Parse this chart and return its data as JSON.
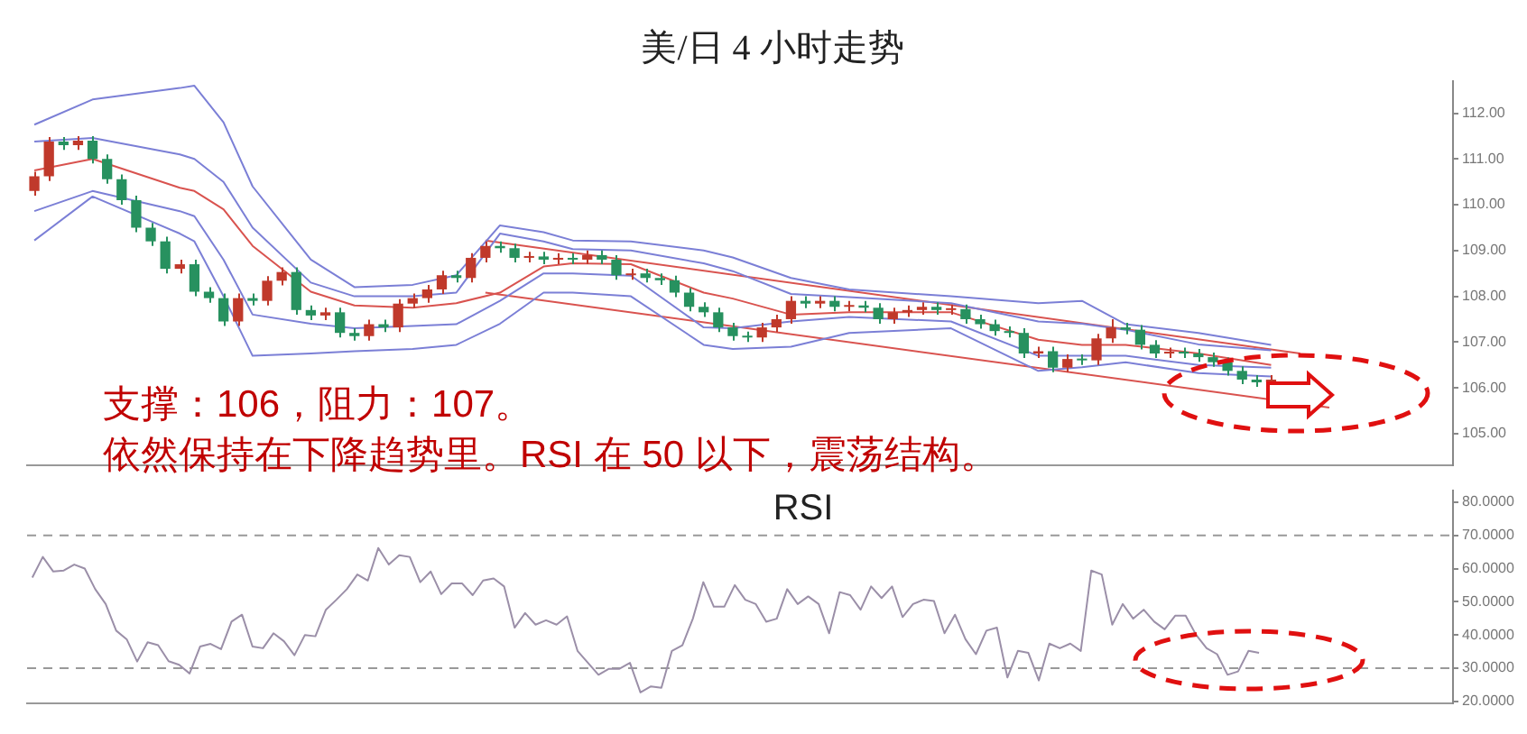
{
  "chart_data": [
    {
      "type": "candlestick",
      "title": "美/日 4 小时走势",
      "annotations": [
        "支撑：106，阻力：107。",
        "依然保持在下降趋势里。RSI 在 50 以下，震荡结构。"
      ],
      "categories": [
        null,
        null,
        null,
        null,
        null,
        null,
        null,
        null,
        null,
        null,
        null,
        null,
        null,
        null,
        null,
        null,
        null,
        null,
        null,
        null,
        null,
        null,
        null,
        null,
        null,
        null,
        null,
        null,
        null,
        null,
        null,
        null,
        null,
        null,
        null,
        null,
        null,
        null,
        null,
        null,
        null,
        null,
        null,
        null,
        null,
        null,
        null,
        null,
        null,
        null,
        null,
        null,
        null,
        null,
        null,
        null,
        null,
        null,
        null,
        null,
        null,
        null,
        null,
        null,
        null,
        null,
        null,
        null,
        null,
        null,
        null,
        null,
        null,
        null,
        null,
        null,
        null,
        null,
        null,
        null,
        null,
        null,
        null,
        null,
        null,
        null,
        null,
        null,
        null,
        null,
        null,
        null,
        null,
        null,
        null,
        null,
        null,
        null
      ],
      "ohlc": [
        [
          110.3,
          110.72,
          110.2,
          110.62
        ],
        [
          110.62,
          111.48,
          110.52,
          111.38
        ],
        [
          111.38,
          111.48,
          111.2,
          111.3
        ],
        [
          111.3,
          111.5,
          111.2,
          111.4
        ],
        [
          111.4,
          111.5,
          110.9,
          111.0
        ],
        [
          111.0,
          111.1,
          110.46,
          110.56
        ],
        [
          110.56,
          110.66,
          110.0,
          110.1
        ],
        [
          110.1,
          110.2,
          109.4,
          109.5
        ],
        [
          109.5,
          109.6,
          109.1,
          109.2
        ],
        [
          109.2,
          109.3,
          108.5,
          108.6
        ],
        [
          108.6,
          108.8,
          108.5,
          108.7
        ],
        [
          108.7,
          108.8,
          108.0,
          108.1
        ],
        [
          108.1,
          108.2,
          107.86,
          107.96
        ],
        [
          107.96,
          108.06,
          107.35,
          107.45
        ],
        [
          107.45,
          108.06,
          107.35,
          107.96
        ],
        [
          107.96,
          108.06,
          107.8,
          107.9
        ],
        [
          107.9,
          108.44,
          107.8,
          108.34
        ],
        [
          108.34,
          108.63,
          108.24,
          108.53
        ],
        [
          108.53,
          108.63,
          107.6,
          107.7
        ],
        [
          107.7,
          107.8,
          107.48,
          107.58
        ],
        [
          107.58,
          107.75,
          107.48,
          107.65
        ],
        [
          107.65,
          107.75,
          107.1,
          107.2
        ],
        [
          107.2,
          107.3,
          107.03,
          107.13
        ],
        [
          107.13,
          107.49,
          107.03,
          107.39
        ],
        [
          107.39,
          107.49,
          107.22,
          107.32
        ],
        [
          107.32,
          107.94,
          107.22,
          107.84
        ],
        [
          107.84,
          108.06,
          107.74,
          107.96
        ],
        [
          107.96,
          108.25,
          107.86,
          108.15
        ],
        [
          108.15,
          108.56,
          108.05,
          108.46
        ],
        [
          108.46,
          108.56,
          108.3,
          108.4
        ],
        [
          108.4,
          108.94,
          108.3,
          108.84
        ],
        [
          108.84,
          109.2,
          108.74,
          109.1
        ],
        [
          109.1,
          109.2,
          108.95,
          109.05
        ],
        [
          109.05,
          109.15,
          108.74,
          108.84
        ],
        [
          108.84,
          108.97,
          108.74,
          108.87
        ],
        [
          108.87,
          108.97,
          108.7,
          108.8
        ],
        [
          108.8,
          108.94,
          108.7,
          108.84
        ],
        [
          108.84,
          108.94,
          108.7,
          108.8
        ],
        [
          108.8,
          109.0,
          108.7,
          108.9
        ],
        [
          108.9,
          109.0,
          108.7,
          108.8
        ],
        [
          108.8,
          108.9,
          108.36,
          108.46
        ],
        [
          108.46,
          108.6,
          108.36,
          108.5
        ],
        [
          108.5,
          108.6,
          108.3,
          108.4
        ],
        [
          108.4,
          108.5,
          108.25,
          108.35
        ],
        [
          108.35,
          108.45,
          107.98,
          108.08
        ],
        [
          108.08,
          108.18,
          107.67,
          107.77
        ],
        [
          107.77,
          107.87,
          107.55,
          107.65
        ],
        [
          107.65,
          107.75,
          107.22,
          107.32
        ],
        [
          107.32,
          107.42,
          107.03,
          107.13
        ],
        [
          107.13,
          107.23,
          107.0,
          107.1
        ],
        [
          107.1,
          107.42,
          107.0,
          107.32
        ],
        [
          107.32,
          107.6,
          107.22,
          107.5
        ],
        [
          107.5,
          108.0,
          107.4,
          107.9
        ],
        [
          107.9,
          108.0,
          107.74,
          107.84
        ],
        [
          107.84,
          108.0,
          107.74,
          107.9
        ],
        [
          107.9,
          108.0,
          107.67,
          107.77
        ],
        [
          107.77,
          107.9,
          107.67,
          107.8
        ],
        [
          107.8,
          107.9,
          107.65,
          107.75
        ],
        [
          107.75,
          107.85,
          107.4,
          107.5
        ],
        [
          107.5,
          107.75,
          107.4,
          107.65
        ],
        [
          107.65,
          107.8,
          107.55,
          107.7
        ],
        [
          107.7,
          107.87,
          107.6,
          107.77
        ],
        [
          107.77,
          107.87,
          107.6,
          107.7
        ],
        [
          107.7,
          107.82,
          107.6,
          107.72
        ],
        [
          107.72,
          107.82,
          107.4,
          107.5
        ],
        [
          107.5,
          107.6,
          107.29,
          107.39
        ],
        [
          107.39,
          107.49,
          107.14,
          107.24
        ],
        [
          107.24,
          107.34,
          107.1,
          107.2
        ],
        [
          107.2,
          107.3,
          106.65,
          106.75
        ],
        [
          106.75,
          106.9,
          106.65,
          106.8
        ],
        [
          106.8,
          106.9,
          106.34,
          106.44
        ],
        [
          106.44,
          106.73,
          106.34,
          106.63
        ],
        [
          106.63,
          106.73,
          106.5,
          106.6
        ],
        [
          106.6,
          107.18,
          106.5,
          107.08
        ],
        [
          107.08,
          107.5,
          106.98,
          107.32
        ],
        [
          107.32,
          107.42,
          107.17,
          107.27
        ],
        [
          107.27,
          107.37,
          106.84,
          106.94
        ],
        [
          106.94,
          107.04,
          106.65,
          106.75
        ],
        [
          106.75,
          106.88,
          106.65,
          106.78
        ],
        [
          106.78,
          106.88,
          106.65,
          106.75
        ],
        [
          106.75,
          106.85,
          106.57,
          106.67
        ],
        [
          106.67,
          106.77,
          106.46,
          106.56
        ],
        [
          106.56,
          106.66,
          106.27,
          106.37
        ],
        [
          106.37,
          106.47,
          106.08,
          106.18
        ],
        [
          106.18,
          106.28,
          106.02,
          106.12
        ],
        [
          106.12,
          106.28,
          106.02,
          106.18
        ],
        null,
        null,
        null,
        null,
        null,
        null,
        null,
        null,
        null,
        null,
        null,
        null
      ],
      "colors": [
        "#c0392b",
        "#c0392b",
        "#27915f",
        "#c0392b",
        "#27915f",
        "#27915f",
        "#27915f",
        "#27915f",
        "#27915f",
        "#27915f",
        "#c0392b",
        "#27915f",
        "#27915f",
        "#27915f",
        "#c0392b",
        "#27915f",
        "#c0392b",
        "#c0392b",
        "#27915f",
        "#27915f",
        "#c0392b",
        "#27915f",
        "#27915f",
        "#c0392b",
        "#27915f",
        "#c0392b",
        "#c0392b",
        "#c0392b",
        "#c0392b",
        "#27915f",
        "#c0392b",
        "#c0392b",
        "#27915f",
        "#27915f",
        "#c0392b",
        "#27915f",
        "#c0392b",
        "#27915f",
        "#c0392b",
        "#27915f",
        "#27915f",
        "#c0392b",
        "#27915f",
        "#27915f",
        "#27915f",
        "#27915f",
        "#27915f",
        "#27915f",
        "#27915f",
        "#27915f",
        "#c0392b",
        "#c0392b",
        "#c0392b",
        "#27915f",
        "#c0392b",
        "#27915f",
        "#c0392b",
        "#27915f",
        "#27915f",
        "#c0392b",
        "#c0392b",
        "#c0392b",
        "#27915f",
        "#c0392b",
        "#27915f",
        "#27915f",
        "#27915f",
        "#27915f",
        "#27915f",
        "#c0392b",
        "#27915f",
        "#c0392b",
        "#27915f",
        "#c0392b",
        "#c0392b",
        "#27915f",
        "#27915f",
        "#27915f",
        "#c0392b",
        "#27915f",
        "#27915f",
        "#27915f",
        "#27915f",
        "#27915f",
        "#27915f",
        "#c0392b",
        null,
        null,
        null,
        null,
        null,
        null,
        null,
        null,
        null,
        null,
        null,
        null
      ],
      "series": [
        {
          "type": "line",
          "color": "#7b7fd6",
          "values": [
            111.75,
            null,
            null,
            null,
            112.3,
            null,
            null,
            null,
            null,
            null,
            112.55,
            112.6,
            null,
            111.8,
            null,
            110.4,
            null,
            null,
            null,
            108.8,
            null,
            null,
            108.2,
            null,
            null,
            null,
            108.25,
            null,
            null,
            108.46,
            null,
            null,
            109.55,
            null,
            null,
            109.4,
            null,
            109.22,
            null,
            null,
            null,
            109.2,
            null,
            null,
            null,
            null,
            109.0,
            null,
            108.85,
            null,
            null,
            null,
            108.4,
            null,
            null,
            null,
            108.15,
            null,
            null,
            null,
            null,
            null,
            null,
            108.0,
            null,
            null,
            null,
            null,
            null,
            107.85,
            null,
            null,
            107.9,
            null,
            null,
            107.39,
            null,
            null,
            null,
            null,
            107.2,
            null,
            null,
            null,
            null,
            106.94,
            null,
            null,
            null,
            null,
            null,
            null,
            null,
            null,
            null,
            null,
            null,
            null
          ]
        },
        {
          "type": "line",
          "color": "#7b7fd6",
          "values": [
            111.38,
            null,
            null,
            null,
            111.46,
            null,
            null,
            null,
            null,
            null,
            111.1,
            111.0,
            null,
            110.5,
            null,
            109.5,
            null,
            null,
            null,
            108.3,
            null,
            null,
            108.0,
            null,
            null,
            null,
            108.0,
            null,
            null,
            108.08,
            null,
            null,
            109.37,
            null,
            null,
            109.2,
            null,
            109.03,
            null,
            null,
            null,
            109.0,
            null,
            null,
            null,
            null,
            108.72,
            null,
            108.55,
            null,
            null,
            null,
            108.05,
            null,
            null,
            null,
            107.98,
            null,
            null,
            null,
            null,
            null,
            null,
            107.85,
            null,
            null,
            null,
            null,
            null,
            107.45,
            null,
            null,
            107.4,
            null,
            null,
            107.27,
            null,
            null,
            null,
            null,
            106.95,
            null,
            null,
            null,
            null,
            106.82,
            null,
            null,
            null,
            null,
            null,
            null,
            null,
            null,
            null,
            null,
            null,
            null
          ]
        },
        {
          "type": "line",
          "color": "#d9534f",
          "values": [
            110.75,
            null,
            null,
            null,
            111.0,
            null,
            null,
            null,
            null,
            null,
            110.37,
            110.3,
            null,
            109.9,
            null,
            109.1,
            null,
            null,
            null,
            108.1,
            null,
            null,
            107.8,
            null,
            null,
            null,
            107.75,
            null,
            null,
            107.85,
            null,
            null,
            108.08,
            null,
            null,
            108.65,
            null,
            108.72,
            null,
            null,
            null,
            108.7,
            null,
            null,
            null,
            null,
            108.08,
            null,
            107.95,
            null,
            null,
            null,
            107.6,
            null,
            null,
            null,
            107.65,
            null,
            null,
            null,
            null,
            null,
            null,
            107.65,
            null,
            null,
            null,
            null,
            null,
            107.05,
            null,
            null,
            106.94,
            null,
            null,
            106.94,
            null,
            null,
            null,
            null,
            106.75,
            null,
            null,
            null,
            null,
            106.5,
            null,
            null,
            null,
            null,
            null,
            null,
            null,
            null,
            null,
            null,
            null,
            null
          ]
        },
        {
          "type": "line",
          "color": "#7b7fd6",
          "values": [
            109.86,
            null,
            null,
            null,
            110.3,
            null,
            null,
            null,
            null,
            null,
            109.86,
            109.75,
            null,
            108.8,
            null,
            107.6,
            null,
            null,
            null,
            107.4,
            null,
            null,
            107.3,
            null,
            null,
            null,
            107.35,
            null,
            null,
            107.39,
            null,
            null,
            107.9,
            null,
            null,
            108.5,
            null,
            108.5,
            null,
            null,
            null,
            108.45,
            null,
            null,
            null,
            null,
            107.32,
            null,
            107.3,
            null,
            null,
            null,
            107.45,
            null,
            null,
            null,
            107.55,
            null,
            null,
            null,
            null,
            null,
            null,
            107.45,
            null,
            null,
            null,
            null,
            null,
            106.7,
            null,
            null,
            106.7,
            null,
            null,
            106.7,
            null,
            null,
            null,
            null,
            106.5,
            null,
            null,
            null,
            null,
            106.44,
            null,
            null,
            null,
            null,
            null,
            null,
            null,
            null,
            null,
            null,
            null,
            null
          ]
        },
        {
          "type": "line",
          "color": "#7b7fd6",
          "values": [
            109.22,
            null,
            null,
            null,
            110.18,
            null,
            null,
            null,
            null,
            null,
            109.37,
            109.2,
            null,
            108.0,
            null,
            106.7,
            null,
            null,
            null,
            106.75,
            null,
            null,
            106.8,
            null,
            null,
            null,
            106.85,
            null,
            null,
            106.94,
            null,
            null,
            107.4,
            null,
            null,
            108.08,
            null,
            108.08,
            null,
            null,
            null,
            108.0,
            null,
            null,
            null,
            null,
            106.94,
            null,
            106.85,
            null,
            null,
            null,
            106.9,
            null,
            null,
            null,
            107.2,
            null,
            null,
            null,
            null,
            null,
            null,
            107.3,
            null,
            null,
            null,
            null,
            null,
            106.37,
            null,
            null,
            106.45,
            null,
            null,
            106.56,
            null,
            null,
            null,
            null,
            106.32,
            null,
            null,
            null,
            null,
            106.25,
            null,
            null,
            null,
            null,
            null,
            null,
            null,
            null,
            null,
            null,
            null,
            null
          ]
        },
        {
          "type": "line",
          "color": "#d9534f",
          "values": [
            null,
            null,
            null,
            null,
            null,
            null,
            null,
            null,
            null,
            null,
            null,
            null,
            null,
            null,
            null,
            null,
            null,
            null,
            null,
            null,
            null,
            null,
            null,
            null,
            null,
            null,
            null,
            null,
            null,
            null,
            null,
            109.22,
            null,
            null,
            null,
            null,
            null,
            null,
            null,
            null,
            null,
            null,
            null,
            null,
            null,
            null,
            null,
            null,
            null,
            null,
            null,
            null,
            null,
            null,
            null,
            null,
            null,
            null,
            null,
            null,
            null,
            null,
            null,
            null,
            null,
            null,
            null,
            null,
            null,
            null,
            null,
            null,
            null,
            null,
            null,
            null,
            null,
            null,
            null,
            null,
            null,
            null,
            null,
            null,
            null,
            null,
            null,
            106.75,
            null,
            null,
            null,
            null,
            null,
            null,
            null,
            null,
            null,
            null
          ]
        },
        {
          "type": "line",
          "color": "#d9534f",
          "values": [
            null,
            null,
            null,
            null,
            null,
            null,
            null,
            null,
            null,
            null,
            null,
            null,
            null,
            null,
            null,
            null,
            null,
            null,
            null,
            null,
            null,
            null,
            null,
            null,
            null,
            null,
            null,
            null,
            null,
            null,
            null,
            108.08,
            null,
            null,
            null,
            null,
            null,
            null,
            null,
            null,
            null,
            null,
            null,
            null,
            null,
            null,
            null,
            null,
            null,
            null,
            null,
            null,
            null,
            null,
            null,
            null,
            null,
            null,
            null,
            null,
            null,
            null,
            null,
            null,
            null,
            null,
            null,
            null,
            null,
            null,
            null,
            null,
            null,
            null,
            null,
            null,
            null,
            null,
            null,
            null,
            null,
            null,
            null,
            null,
            null,
            null,
            null,
            null,
            null,
            105.57,
            null,
            null,
            null,
            null,
            null,
            null,
            null,
            null
          ]
        }
      ],
      "ylim": [
        104.3,
        112.7
      ],
      "yticks": [
        {
          "value": 105,
          "label": "105.00"
        },
        {
          "value": 106,
          "label": "106.00"
        },
        {
          "value": 107,
          "label": "107.00"
        },
        {
          "value": 108,
          "label": "108.00"
        },
        {
          "value": 109,
          "label": "109.00"
        },
        {
          "value": 110,
          "label": "110.00"
        },
        {
          "value": 111,
          "label": "111.00"
        },
        {
          "value": 112,
          "label": "112.00"
        }
      ],
      "tick_labels": "y"
    },
    {
      "type": "line",
      "title": "RSI",
      "categories": [
        null,
        null,
        null,
        null,
        null,
        null,
        null,
        null,
        null,
        null,
        null,
        null,
        null,
        null,
        null,
        null,
        null,
        null,
        null,
        null,
        null,
        null,
        null,
        null,
        null,
        null,
        null,
        null,
        null,
        null,
        null,
        null,
        null,
        null,
        null,
        null,
        null,
        null,
        null,
        null,
        null,
        null,
        null,
        null,
        null,
        null,
        null,
        null,
        null,
        null,
        null,
        null,
        null,
        null,
        null,
        null,
        null,
        null,
        null,
        null,
        null,
        null,
        null,
        null,
        null,
        null,
        null,
        null,
        null,
        null,
        null,
        null,
        null,
        null,
        null,
        null,
        null,
        null,
        null,
        null,
        null,
        null,
        null,
        null,
        null,
        null,
        null,
        null,
        null,
        null,
        null,
        null,
        null,
        null,
        null,
        null,
        null,
        null,
        null,
        null,
        null,
        null,
        null,
        null,
        null,
        null,
        null,
        null,
        null,
        null,
        null,
        null,
        null,
        null,
        null,
        null,
        null,
        null,
        null,
        null,
        null,
        null,
        null,
        null,
        null,
        null,
        null,
        null,
        null,
        null,
        null,
        null,
        null,
        null,
        null,
        null
      ],
      "color": "#9b8fa8",
      "values": [
        57.3,
        63.5,
        59.1,
        59.4,
        61.2,
        60,
        53.8,
        49.3,
        41.3,
        38.7,
        32,
        37.8,
        36.9,
        32.1,
        31,
        28.4,
        36.5,
        37.3,
        35.7,
        44,
        46.1,
        36.5,
        36,
        40.5,
        38.1,
        33.9,
        40,
        39.6,
        47.6,
        50.6,
        53.8,
        58.2,
        56.4,
        66.2,
        61.2,
        64,
        63.5,
        55.9,
        59.1,
        52.3,
        55.5,
        55.5,
        52,
        56.4,
        57,
        54.6,
        42.2,
        46.6,
        43.1,
        44.4,
        43.1,
        45.6,
        35.2,
        31.6,
        28,
        29.8,
        29.8,
        31.6,
        22.7,
        24.5,
        24.1,
        35.2,
        36.9,
        44.9,
        55.9,
        48.5,
        48.5,
        55,
        50.6,
        49.3,
        44,
        44.9,
        53.8,
        49.3,
        51.6,
        49.3,
        40.5,
        52.9,
        52,
        47.6,
        54.6,
        51.1,
        54.6,
        45.4,
        49.3,
        50.6,
        50.2,
        40.5,
        46.1,
        38.7,
        34.2,
        41.3,
        42.2,
        27.2,
        35.2,
        34.6,
        26.3,
        37.4,
        36,
        37.4,
        35.2,
        59.4,
        58.2,
        43.1,
        49.3,
        44.9,
        47.6,
        44,
        41.7,
        45.8,
        45.8,
        40,
        36,
        34.2,
        28,
        29,
        35.2,
        34.6,
        null,
        null,
        null,
        null,
        null,
        null,
        null,
        null,
        null,
        null,
        null,
        null,
        null,
        null,
        null,
        null,
        null,
        null
      ],
      "ylim": [
        19.4,
        83.6
      ],
      "yticks": [
        {
          "value": 20,
          "label": "20.0000"
        },
        {
          "value": 30,
          "label": "30.0000"
        },
        {
          "value": 40,
          "label": "40.0000"
        },
        {
          "value": 50,
          "label": "50.0000"
        },
        {
          "value": 60,
          "label": "60.0000"
        },
        {
          "value": 70,
          "label": "70.0000"
        },
        {
          "value": 80,
          "label": "80.0000"
        }
      ],
      "ref_lines": [
        {
          "axis": "y",
          "value": 70,
          "color": "#999999",
          "line_style": "dashed"
        },
        {
          "axis": "y",
          "value": 30,
          "color": "#999999",
          "line_style": "dashed"
        }
      ],
      "tick_labels": "y"
    }
  ]
}
